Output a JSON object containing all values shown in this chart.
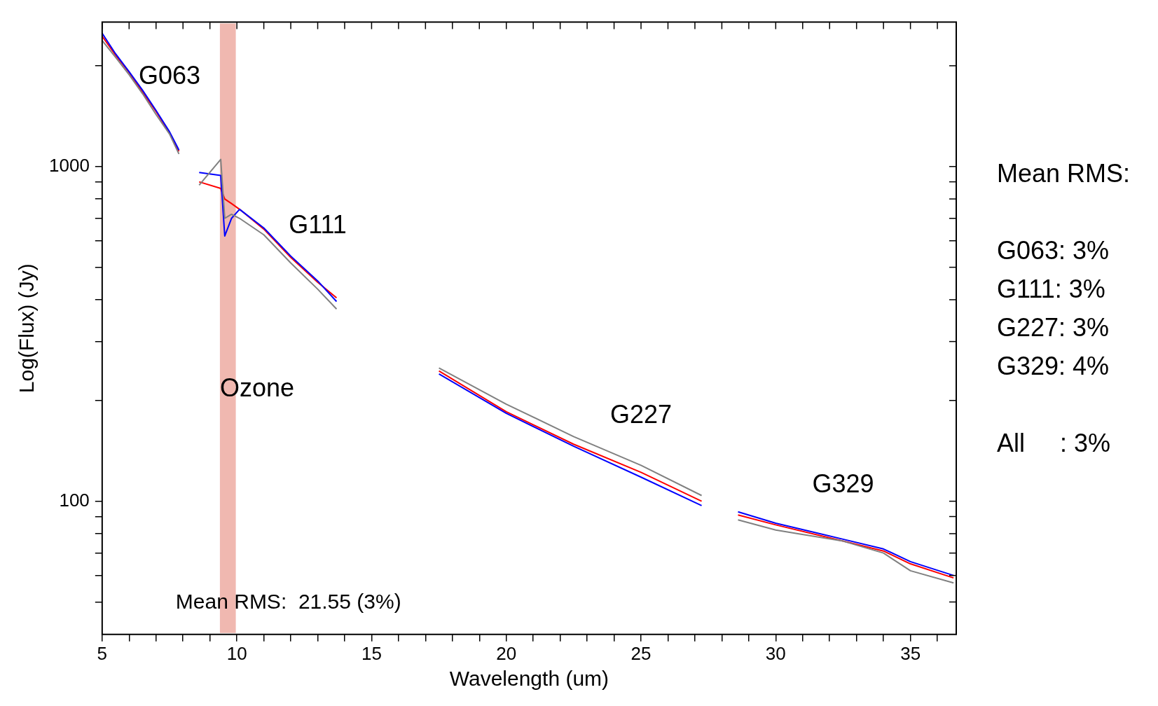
{
  "chart_data": {
    "type": "line",
    "xlabel": "Wavelength (um)",
    "ylabel": "Log(Flux) (Jy)",
    "xlim": [
      5,
      36.7
    ],
    "xticks": [
      5,
      {
        "value": 6,
        "label": null
      },
      {
        "value": 7,
        "label": null
      },
      {
        "value": 8,
        "label": null
      },
      {
        "value": 9,
        "label": null
      },
      10,
      {
        "value": 11,
        "label": null
      },
      {
        "value": 12,
        "label": null
      },
      {
        "value": 13,
        "label": null
      },
      {
        "value": 14,
        "label": null
      },
      15,
      {
        "value": 16,
        "label": null
      },
      {
        "value": 17,
        "label": null
      },
      {
        "value": 18,
        "label": null
      },
      {
        "value": 19,
        "label": null
      },
      20,
      {
        "value": 21,
        "label": null
      },
      {
        "value": 22,
        "label": null
      },
      {
        "value": 23,
        "label": null
      },
      {
        "value": 24,
        "label": null
      },
      25,
      {
        "value": 26,
        "label": null
      },
      {
        "value": 27,
        "label": null
      },
      {
        "value": 28,
        "label": null
      },
      {
        "value": 29,
        "label": null
      },
      30,
      {
        "value": 31,
        "label": null
      },
      {
        "value": 32,
        "label": null
      },
      {
        "value": 33,
        "label": null
      },
      {
        "value": 34,
        "label": null
      },
      35,
      {
        "value": 36,
        "label": null
      }
    ],
    "ylim": [
      40,
      2700
    ],
    "yticks": [
      {
        "value": 50,
        "label": null
      },
      {
        "value": 60,
        "label": null
      },
      {
        "value": 70,
        "label": null
      },
      {
        "value": 80,
        "label": null
      },
      {
        "value": 90,
        "label": null
      },
      100,
      {
        "value": 200,
        "label": null
      },
      {
        "value": 300,
        "label": null
      },
      {
        "value": 400,
        "label": null
      },
      {
        "value": 500,
        "label": null
      },
      {
        "value": 600,
        "label": null
      },
      {
        "value": 700,
        "label": null
      },
      {
        "value": 800,
        "label": null
      },
      {
        "value": 900,
        "label": null
      },
      1000,
      {
        "value": 2000,
        "label": null
      }
    ],
    "log": "y",
    "grid": false,
    "legend": false,
    "marker": "none",
    "line_style": "solid",
    "x": [
      5,
      5.5,
      6,
      6.5,
      7,
      7.5,
      7.85,
      8,
      8.6,
      9.4,
      9.55,
      9.8,
      10.1,
      11,
      12,
      13,
      13.7,
      15,
      17.5,
      20,
      22.5,
      25,
      27.25,
      28,
      28.6,
      30,
      32.5,
      34,
      35,
      36.6
    ],
    "series": [
      {
        "color": "#808080",
        "values": [
          2380,
          2120,
          1880,
          1650,
          1430,
          1250,
          1090,
          null,
          880,
          1050,
          700,
          720,
          700,
          625,
          515,
          430,
          375,
          null,
          250,
          195,
          156,
          128,
          104,
          null,
          88,
          82,
          76,
          70,
          62,
          57
        ]
      },
      {
        "color": "#0000ff",
        "values": [
          2500,
          2170,
          1920,
          1690,
          1470,
          1270,
          1120,
          null,
          960,
          940,
          620,
          700,
          745,
          655,
          540,
          455,
          395,
          null,
          240,
          183,
          146,
          118,
          97,
          null,
          93,
          86,
          77,
          72,
          66,
          60
        ]
      },
      {
        "color": "#ff0000",
        "values": [
          2450,
          2150,
          1910,
          1670,
          1460,
          1260,
          1110,
          null,
          900,
          860,
          800,
          775,
          745,
          650,
          535,
          451,
          405,
          null,
          245,
          185,
          148,
          122,
          100,
          null,
          91,
          85,
          76,
          71,
          65,
          59
        ]
      }
    ],
    "bands": [
      {
        "axis": "x",
        "from": 9.37,
        "to": 9.96,
        "label": "Ozone",
        "color": "#f0b8b0"
      }
    ],
    "annotations": [
      {
        "text": "G063",
        "x": 7.5,
        "y": 1260
      },
      {
        "text": "G111",
        "x": 13.0,
        "y": 451
      },
      {
        "text": "G227",
        "x": 25.0,
        "y": 122
      },
      {
        "text": "G329",
        "x": 32.5,
        "y": 76
      },
      "Mean RMS:  21.55 (3%)",
      "Mean RMS:",
      "G063: 3%",
      "G111: 3%",
      "G227: 3%",
      "G329: 4%",
      "All     : 3%"
    ]
  }
}
